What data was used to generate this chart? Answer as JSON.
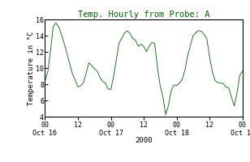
{
  "title": "Temp. Hourly from Probe: A",
  "ylabel": "Temperature in °C",
  "xlabel": "2000",
  "ylim": [
    4,
    16
  ],
  "yticks": [
    4,
    6,
    8,
    10,
    12,
    14,
    16
  ],
  "line_color": "#006400",
  "bg_color": "#ffffff",
  "title_color": "#006400",
  "axis_color": "#000000",
  "figsize": [
    3.08,
    2.0
  ],
  "dpi": 100,
  "tick_fontsize": 6.0,
  "label_fontsize": 6.5,
  "title_fontsize": 7.5
}
